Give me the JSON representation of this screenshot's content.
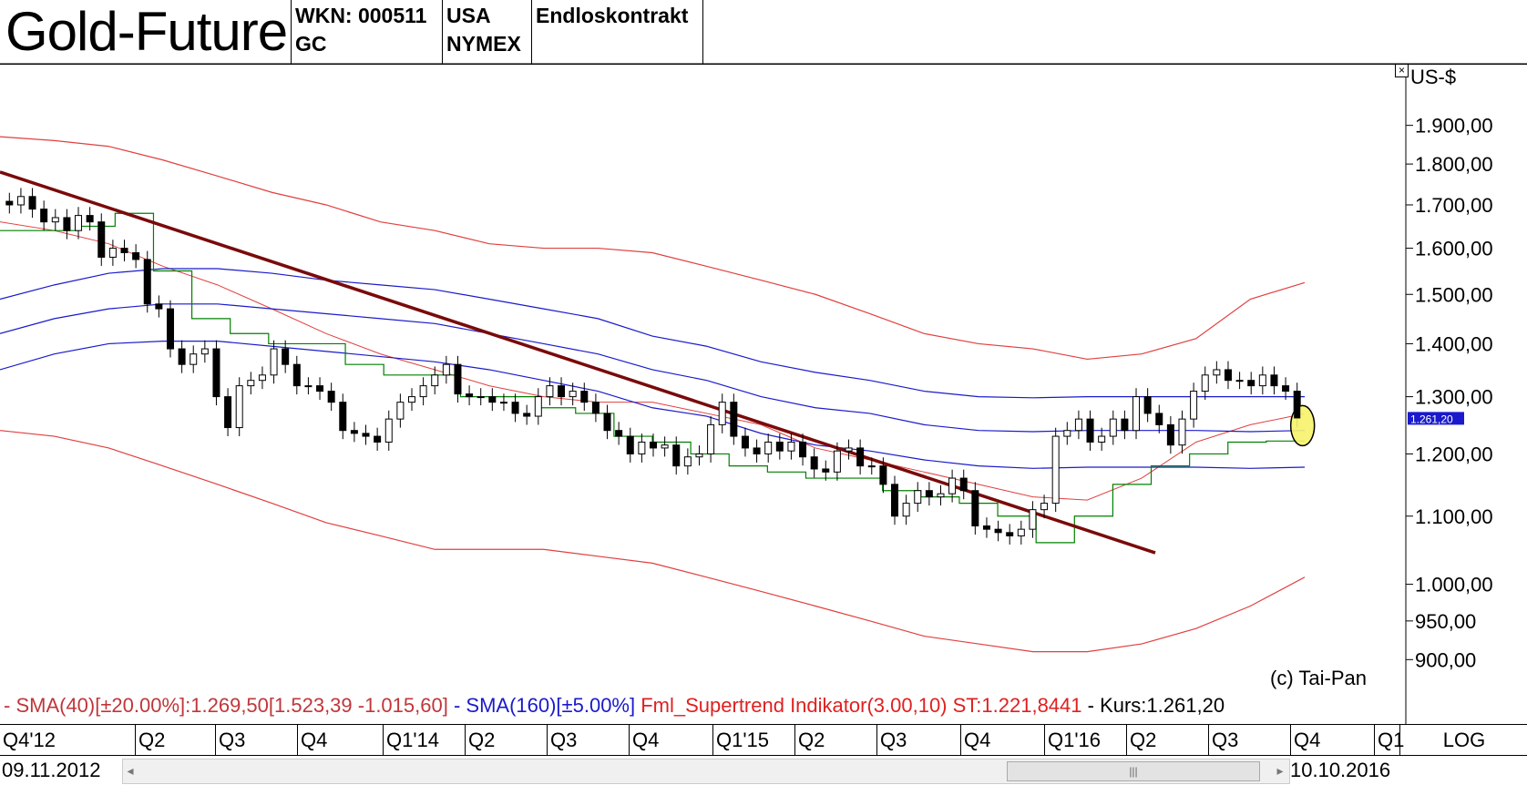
{
  "header": {
    "title": "Gold-Future",
    "wkn": "WKN: 000511",
    "symbol": "GC",
    "country": "USA",
    "exchange": "NYMEX",
    "contract": "Endloskontrakt"
  },
  "chart_data": {
    "type": "candlestick",
    "unit_label": "US-$",
    "y_scale": "log",
    "ylim": [
      860,
      2050
    ],
    "y_ticks": [
      "1.900,00",
      "1.800,00",
      "1.700,00",
      "1.600,00",
      "1.500,00",
      "1.400,00",
      "1.300,00",
      "1.200,00",
      "1.100,00",
      "1.000,00",
      "950,00",
      "900,00"
    ],
    "y_tick_values": [
      1900,
      1800,
      1700,
      1600,
      1500,
      1400,
      1300,
      1200,
      1100,
      1000,
      950,
      900
    ],
    "x_ticks": [
      "Q4'12",
      "Q2",
      "Q3",
      "Q4",
      "Q1'14",
      "Q2",
      "Q3",
      "Q4",
      "Q1'15",
      "Q2",
      "Q3",
      "Q4",
      "Q1'16",
      "Q2",
      "Q3",
      "Q4",
      "Q1"
    ],
    "x_start": "09.11.2012",
    "x_end": "10.10.2016",
    "last_price_label": "1.261,20",
    "last_price": 1261.2,
    "closes": [
      1700,
      1720,
      1690,
      1660,
      1670,
      1640,
      1675,
      1660,
      1580,
      1600,
      1590,
      1575,
      1480,
      1470,
      1390,
      1360,
      1380,
      1390,
      1300,
      1245,
      1320,
      1330,
      1340,
      1390,
      1360,
      1320,
      1320,
      1310,
      1290,
      1240,
      1235,
      1230,
      1220,
      1260,
      1290,
      1300,
      1320,
      1340,
      1360,
      1305,
      1300,
      1300,
      1290,
      1290,
      1270,
      1265,
      1300,
      1320,
      1300,
      1310,
      1290,
      1270,
      1240,
      1230,
      1200,
      1220,
      1210,
      1215,
      1180,
      1195,
      1200,
      1250,
      1290,
      1230,
      1210,
      1200,
      1220,
      1205,
      1220,
      1195,
      1175,
      1170,
      1205,
      1210,
      1180,
      1180,
      1150,
      1100,
      1120,
      1140,
      1130,
      1135,
      1160,
      1140,
      1085,
      1080,
      1075,
      1070,
      1080,
      1110,
      1120,
      1230,
      1240,
      1260,
      1220,
      1230,
      1260,
      1240,
      1300,
      1270,
      1250,
      1215,
      1260,
      1310,
      1340,
      1350,
      1330,
      1330,
      1320,
      1340,
      1320,
      1310,
      1261.2
    ],
    "band_upper_40": [
      1870,
      1860,
      1845,
      1810,
      1770,
      1730,
      1700,
      1660,
      1640,
      1610,
      1600,
      1600,
      1590,
      1560,
      1530,
      1500,
      1460,
      1420,
      1400,
      1390,
      1370,
      1380,
      1410,
      1490,
      1525
    ],
    "band_lower_40": [
      1240,
      1230,
      1210,
      1180,
      1150,
      1120,
      1090,
      1070,
      1050,
      1050,
      1050,
      1040,
      1030,
      1010,
      990,
      970,
      950,
      930,
      920,
      910,
      910,
      920,
      940,
      970,
      1010
    ],
    "sma_40": [
      1660,
      1640,
      1610,
      1560,
      1520,
      1470,
      1420,
      1380,
      1350,
      1320,
      1300,
      1290,
      1290,
      1270,
      1250,
      1210,
      1190,
      1170,
      1150,
      1130,
      1125,
      1160,
      1220,
      1250,
      1269.5
    ],
    "sma_160": [
      1420,
      1450,
      1470,
      1480,
      1480,
      1470,
      1460,
      1450,
      1440,
      1420,
      1400,
      1380,
      1350,
      1330,
      1300,
      1280,
      1270,
      1250,
      1240,
      1238,
      1240,
      1240,
      1240,
      1238,
      1240
    ],
    "sma_160_upper": [
      1490,
      1520,
      1545,
      1555,
      1555,
      1545,
      1530,
      1520,
      1510,
      1490,
      1470,
      1450,
      1415,
      1395,
      1365,
      1345,
      1330,
      1310,
      1300,
      1298,
      1300,
      1300,
      1300,
      1300,
      1300
    ],
    "sma_160_lower": [
      1350,
      1380,
      1400,
      1405,
      1405,
      1395,
      1385,
      1375,
      1365,
      1350,
      1330,
      1310,
      1280,
      1265,
      1235,
      1215,
      1205,
      1190,
      1180,
      1176,
      1178,
      1178,
      1178,
      1176,
      1178
    ],
    "supertrend": [
      1640,
      1640,
      1650,
      1680,
      1550,
      1450,
      1420,
      1400,
      1400,
      1360,
      1340,
      1340,
      1300,
      1300,
      1280,
      1270,
      1230,
      1220,
      1200,
      1180,
      1170,
      1160,
      1160,
      1140,
      1130,
      1120,
      1100,
      1060,
      1100,
      1150,
      1180,
      1200,
      1220,
      1221.8
    ],
    "trendline": [
      [
        0,
        1780
      ],
      [
        1268,
        1045
      ]
    ]
  },
  "legend": {
    "sma40": "- SMA(40)[±20.00%]:1.269,50[1.523,39 -1.015,60]",
    "sma160": " - SMA(160)[±5.00%]",
    "supertrend": " Fml_Supertrend Indikator(3.00,10) ST:1.221,8441",
    "kurs": " - Kurs:1.261,20"
  },
  "copyright": "(c) Tai-Pan",
  "bottom": {
    "log_label": "LOG",
    "scroll_grip": "|||"
  },
  "colors": {
    "band": "#e0403f",
    "sma": "#1a1acc",
    "supertrend": "#008000",
    "trendline": "#7a0a0a",
    "highlight": "#f7f36a"
  }
}
